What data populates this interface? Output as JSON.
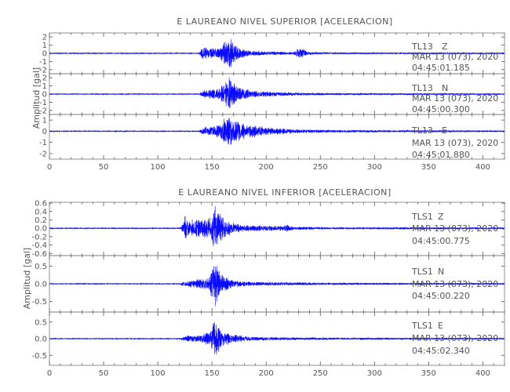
{
  "chart_data": [
    {
      "type": "line",
      "title": "E LAUREANO NIVEL SUPERIOR [ACELERACION]",
      "ylabel": "Amplitud [gal]",
      "xlabel": "",
      "xlim": [
        0,
        420
      ],
      "xticks": [
        0,
        50,
        100,
        150,
        200,
        250,
        300,
        350,
        400
      ],
      "xtick_labels": [
        "0",
        "50",
        "100",
        "150",
        "200",
        "250",
        "300",
        "350",
        "400"
      ],
      "grid": false,
      "panels": [
        {
          "station": "TL13",
          "component": "Z",
          "date": "MAR 13 (073), 2020",
          "time": "04:45:01.185",
          "ylim": [
            -2.5,
            2.5
          ],
          "yticks": [
            -2,
            -1,
            0,
            1,
            2
          ],
          "ytick_labels": [
            "-2",
            "-1",
            "0",
            "1",
            "2"
          ],
          "noise": 0.07,
          "envelope": [
            [
              0,
              0
            ],
            [
              138,
              0
            ],
            [
              142,
              0.9
            ],
            [
              147,
              0.7
            ],
            [
              152,
              0.6
            ],
            [
              158,
              0.9
            ],
            [
              163,
              2.2
            ],
            [
              166,
              2.4
            ],
            [
              170,
              1.3
            ],
            [
              176,
              0.7
            ],
            [
              185,
              0.35
            ],
            [
              200,
              0.2
            ],
            [
              225,
              0.12
            ],
            [
              230,
              0.7
            ],
            [
              234,
              0.6
            ],
            [
              238,
              0.15
            ],
            [
              260,
              0.08
            ],
            [
              280,
              0.05
            ],
            [
              420,
              0.03
            ]
          ]
        },
        {
          "station": "TL13",
          "component": "N",
          "date": "MAR 13 (073), 2020",
          "time": "04:45:00.300",
          "ylim": [
            -2.5,
            2.5
          ],
          "yticks": [
            -2,
            -1,
            0,
            1,
            2
          ],
          "ytick_labels": [
            "-2",
            "-1",
            "0",
            "1",
            "2"
          ],
          "noise": 0.06,
          "envelope": [
            [
              0,
              0
            ],
            [
              138,
              0
            ],
            [
              142,
              0.5
            ],
            [
              150,
              0.6
            ],
            [
              158,
              0.8
            ],
            [
              163,
              1.9
            ],
            [
              166,
              2.4
            ],
            [
              170,
              1.6
            ],
            [
              176,
              0.9
            ],
            [
              185,
              0.5
            ],
            [
              200,
              0.3
            ],
            [
              230,
              0.15
            ],
            [
              260,
              0.08
            ],
            [
              420,
              0.03
            ]
          ]
        },
        {
          "station": "TL13",
          "component": "E",
          "date": "MAR 13 (073), 2020",
          "time": "04:45:01.880",
          "ylim": [
            -2.5,
            1.5
          ],
          "yticks": [
            -2,
            -1,
            0,
            1
          ],
          "ytick_labels": [
            "-2",
            "-1",
            "0",
            "1"
          ],
          "noise": 0.05,
          "envelope": [
            [
              0,
              0
            ],
            [
              138,
              0
            ],
            [
              142,
              0.4
            ],
            [
              150,
              0.5
            ],
            [
              158,
              0.8
            ],
            [
              163,
              1.4
            ],
            [
              166,
              1.8
            ],
            [
              170,
              1.3
            ],
            [
              178,
              0.8
            ],
            [
              190,
              0.55
            ],
            [
              200,
              0.35
            ],
            [
              230,
              0.15
            ],
            [
              260,
              0.08
            ],
            [
              420,
              0.03
            ]
          ]
        }
      ]
    },
    {
      "type": "line",
      "title": "E LAUREANO NIVEL INFERIOR [ACELERACION]",
      "ylabel": "Amplitud [gal]",
      "xlabel": "",
      "xlim": [
        0,
        420
      ],
      "xticks": [
        0,
        50,
        100,
        150,
        200,
        250,
        300,
        350,
        400
      ],
      "xtick_labels": [
        "0",
        "50",
        "100",
        "150",
        "200",
        "250",
        "300",
        "350",
        "400"
      ],
      "grid": false,
      "panels": [
        {
          "station": "TLS1",
          "component": "Z",
          "date": "MAR 13 (073), 2020",
          "time": "04:45:00.775",
          "ylim": [
            -0.65,
            0.62
          ],
          "yticks": [
            -0.6,
            -0.4,
            -0.2,
            0.0,
            0.2,
            0.4,
            0.6
          ],
          "ytick_labels": [
            "-0.6",
            "-0.4",
            "-0.2",
            "0.0",
            "0.2",
            "0.4",
            "0.6"
          ],
          "noise": 0.015,
          "envelope": [
            [
              0,
              0
            ],
            [
              120,
              0
            ],
            [
              123,
              0.1
            ],
            [
              125,
              0.35
            ],
            [
              130,
              0.2
            ],
            [
              140,
              0.22
            ],
            [
              148,
              0.3
            ],
            [
              152,
              0.6
            ],
            [
              155,
              0.55
            ],
            [
              160,
              0.3
            ],
            [
              168,
              0.15
            ],
            [
              180,
              0.07
            ],
            [
              215,
              0.05
            ],
            [
              220,
              0.08
            ],
            [
              226,
              0.03
            ],
            [
              260,
              0.015
            ],
            [
              420,
              0.01
            ]
          ]
        },
        {
          "station": "TLS1",
          "component": "N",
          "date": "MAR 13 (073), 2020",
          "time": "04:45:00.220",
          "ylim": [
            -0.8,
            0.8
          ],
          "yticks": [
            -0.5,
            0.0,
            0.5
          ],
          "ytick_labels": [
            "-0.5",
            "0.0",
            "0.5"
          ],
          "noise": 0.015,
          "envelope": [
            [
              0,
              0
            ],
            [
              120,
              0
            ],
            [
              123,
              0.06
            ],
            [
              130,
              0.1
            ],
            [
              140,
              0.15
            ],
            [
              148,
              0.25
            ],
            [
              152,
              0.8
            ],
            [
              155,
              0.55
            ],
            [
              160,
              0.25
            ],
            [
              170,
              0.1
            ],
            [
              190,
              0.05
            ],
            [
              260,
              0.02
            ],
            [
              420,
              0.012
            ]
          ]
        },
        {
          "station": "TLS1",
          "component": "E",
          "date": "MAR 13 (073), 2020",
          "time": "04:45:02.340",
          "ylim": [
            -0.8,
            0.8
          ],
          "yticks": [
            -0.5,
            0.0,
            0.5
          ],
          "ytick_labels": [
            "-0.5",
            "0.0",
            "0.5"
          ],
          "noise": 0.015,
          "envelope": [
            [
              0,
              0
            ],
            [
              120,
              0
            ],
            [
              123,
              0.06
            ],
            [
              130,
              0.1
            ],
            [
              140,
              0.12
            ],
            [
              148,
              0.25
            ],
            [
              152,
              0.75
            ],
            [
              155,
              0.5
            ],
            [
              160,
              0.25
            ],
            [
              170,
              0.12
            ],
            [
              190,
              0.05
            ],
            [
              260,
              0.02
            ],
            [
              420,
              0.012
            ]
          ]
        }
      ]
    }
  ]
}
